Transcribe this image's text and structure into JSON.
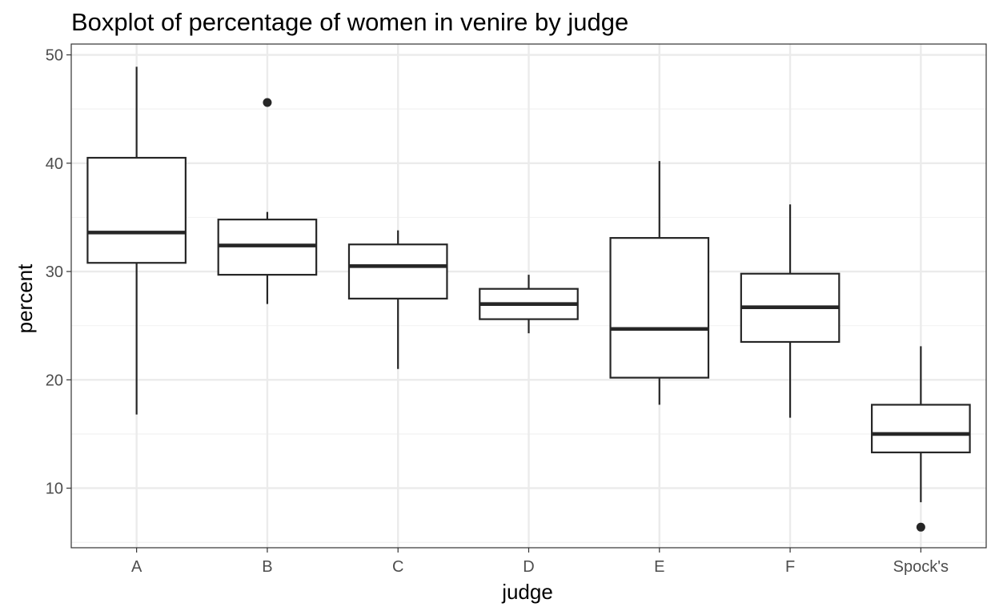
{
  "chart_data": {
    "type": "boxplot",
    "title": "Boxplot of percentage of women in venire by judge",
    "xlabel": "judge",
    "ylabel": "percent",
    "ylim": [
      4.5,
      51
    ],
    "y_ticks": [
      10,
      20,
      30,
      40,
      50
    ],
    "grid": true,
    "legend": "none",
    "categories": [
      "A",
      "B",
      "C",
      "D",
      "E",
      "F",
      "Spock's"
    ],
    "boxes": [
      {
        "category": "A",
        "whisker_low": 16.8,
        "q1": 30.8,
        "median": 33.6,
        "q3": 40.5,
        "whisker_high": 48.9,
        "outliers": []
      },
      {
        "category": "B",
        "whisker_low": 27.0,
        "q1": 29.7,
        "median": 32.4,
        "q3": 34.8,
        "whisker_high": 35.5,
        "outliers": [
          45.6
        ]
      },
      {
        "category": "C",
        "whisker_low": 21.0,
        "q1": 27.5,
        "median": 30.5,
        "q3": 32.5,
        "whisker_high": 33.8,
        "outliers": []
      },
      {
        "category": "D",
        "whisker_low": 24.3,
        "q1": 25.6,
        "median": 27.0,
        "q3": 28.4,
        "whisker_high": 29.7,
        "outliers": []
      },
      {
        "category": "E",
        "whisker_low": 17.7,
        "q1": 20.2,
        "median": 24.7,
        "q3": 33.1,
        "whisker_high": 40.2,
        "outliers": []
      },
      {
        "category": "F",
        "whisker_low": 16.5,
        "q1": 23.5,
        "median": 26.7,
        "q3": 29.8,
        "whisker_high": 36.2,
        "outliers": []
      },
      {
        "category": "Spock's",
        "whisker_low": 8.7,
        "q1": 13.3,
        "median": 15.0,
        "q3": 17.7,
        "whisker_high": 23.1,
        "outliers": [
          6.4
        ]
      }
    ],
    "colors": {
      "box_stroke": "#262626",
      "box_fill": "#ffffff",
      "grid_major": "#ebebeb",
      "grid_minor": "#f2f2f2",
      "panel_border": "#333333",
      "tick_text": "#4d4d4d",
      "text": "#000000"
    }
  }
}
